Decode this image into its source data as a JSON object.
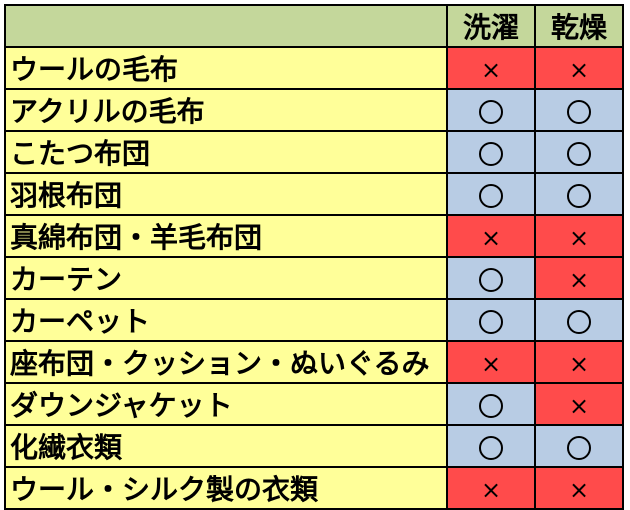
{
  "headers": [
    "",
    "洗濯",
    "乾燥"
  ],
  "rows": [
    {
      "item": "ウールの毛布",
      "wash": "ng",
      "dry": "ng"
    },
    {
      "item": "アクリルの毛布",
      "wash": "ok",
      "dry": "ok"
    },
    {
      "item": "こたつ布団",
      "wash": "ok",
      "dry": "ok"
    },
    {
      "item": "羽根布団",
      "wash": "ok",
      "dry": "ok"
    },
    {
      "item": "真綿布団・羊毛布団",
      "wash": "ng",
      "dry": "ng"
    },
    {
      "item": "カーテン",
      "wash": "ok",
      "dry": "ng"
    },
    {
      "item": "カーペット",
      "wash": "ok",
      "dry": "ok"
    },
    {
      "item": "座布団・クッション・ぬいぐるみ",
      "wash": "ng",
      "dry": "ng"
    },
    {
      "item": "ダウンジャケット",
      "wash": "ok",
      "dry": "ng"
    },
    {
      "item": "化繊衣類",
      "wash": "ok",
      "dry": "ok"
    },
    {
      "item": "ウール・シルク製の衣類",
      "wash": "ng",
      "dry": "ng"
    }
  ],
  "symbols": {
    "ok": "circle-icon",
    "ng": "×"
  },
  "colors": {
    "header": "#c4d79b",
    "item": "#ffff99",
    "ok": "#b8cce4",
    "ng": "#ff4b4b"
  }
}
